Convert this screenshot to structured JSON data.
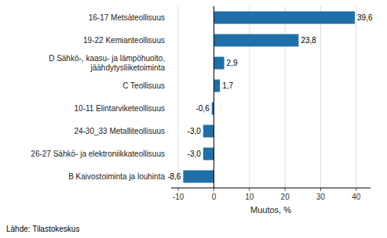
{
  "chart_data": {
    "type": "bar",
    "orientation": "horizontal",
    "categories": [
      "B Kaivostoiminta ja louhinta",
      "26-27 Sähkö- ja elektroniikkateollisuus",
      "24-30_33 Metalliteollisuus",
      "10-11 Elintarviketeollisuus",
      "C Teollisuus",
      "D Sähkö-, kaasu- ja lämpöhuolto,\njäähdytysliiketoiminta",
      "19-22 Kemianteollisuus",
      "16-17 Metsäteollisuus"
    ],
    "values": [
      -8.6,
      -3.0,
      -3.0,
      -0.6,
      1.7,
      2.9,
      23.8,
      39.6
    ],
    "value_labels": [
      "-8,6",
      "-3,0",
      "-3,0",
      "-0,6",
      "1,7",
      "2,9",
      "23,8",
      "39,6"
    ],
    "data_labels": true,
    "color": "#1F6FA8",
    "xlabel": "Muutos, %",
    "xlim": [
      -12,
      44
    ],
    "xticks": [
      -10,
      0,
      10,
      20,
      30,
      40
    ],
    "grid": true,
    "annotations": [
      "Lähde: Tilastokeskus"
    ]
  }
}
